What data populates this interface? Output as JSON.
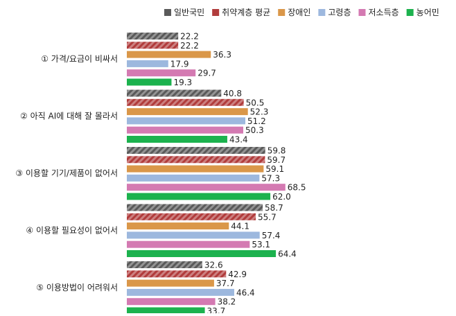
{
  "chart_data": {
    "type": "bar",
    "orientation": "horizontal",
    "categories": [
      "① 가격/요금이 비싸서",
      "② 아직 AI에 대해 잘 몰라서",
      "③ 이용할 기기/제품이 없어서",
      "④ 이용할 필요성이 없어서",
      "⑤ 이용방법이 어려워서"
    ],
    "series": [
      {
        "name": "일반국민",
        "color": "#5a5a5a",
        "pattern": "hatch",
        "values": [
          22.2,
          40.8,
          59.8,
          58.7,
          32.6
        ]
      },
      {
        "name": "취약계층 평균",
        "color": "#b13c3c",
        "pattern": "hatch",
        "values": [
          22.2,
          50.5,
          59.7,
          55.7,
          42.9
        ]
      },
      {
        "name": "장애인",
        "color": "#da9749",
        "values": [
          36.3,
          52.3,
          59.1,
          44.1,
          37.7
        ]
      },
      {
        "name": "고령층",
        "color": "#9db8de",
        "values": [
          17.9,
          51.2,
          57.3,
          57.4,
          46.4
        ]
      },
      {
        "name": "저소득층",
        "color": "#d47ab2",
        "values": [
          29.7,
          50.3,
          68.5,
          53.1,
          38.2
        ]
      },
      {
        "name": "농어민",
        "color": "#1cb24e",
        "values": [
          19.3,
          43.4,
          62.0,
          64.4,
          33.7
        ],
        "value_labels": [
          "19.3",
          "43.4",
          "62.0",
          "64.4",
          "33.7"
        ]
      }
    ],
    "legend": "top-right"
  }
}
